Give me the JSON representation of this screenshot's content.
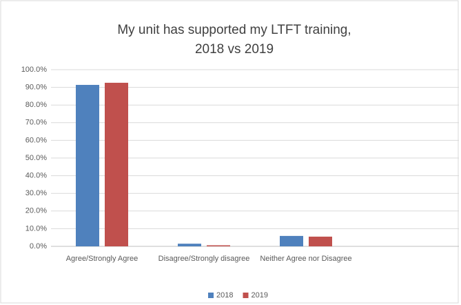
{
  "chart_data": {
    "type": "bar",
    "title": [
      "My unit has supported my LTFT training,",
      "2018 vs 2019"
    ],
    "categories": [
      "Agree/Strongly Agree",
      "Disagree/Strongly disagree",
      "Neither Agree nor Disagree",
      null
    ],
    "series": [
      {
        "name": "2018",
        "color": "#4f81bd",
        "values": [
          91.4,
          1.5,
          5.9,
          null
        ]
      },
      {
        "name": "2019",
        "color": "#c0504d",
        "values": [
          92.6,
          0.6,
          5.5,
          null
        ]
      }
    ],
    "ylim": [
      0,
      100
    ],
    "yticks": [
      {
        "value": 0,
        "label": "0.0%"
      },
      {
        "value": 10,
        "label": "10.0%"
      },
      {
        "value": 20,
        "label": "20.0%"
      },
      {
        "value": 30,
        "label": "30.0%"
      },
      {
        "value": 40,
        "label": "40.0%"
      },
      {
        "value": 50,
        "label": "50.0%"
      },
      {
        "value": 60,
        "label": "60.0%"
      },
      {
        "value": 70,
        "label": "70.0%"
      },
      {
        "value": 80,
        "label": "80.0%"
      },
      {
        "value": 90,
        "label": "90.0%"
      },
      {
        "value": 100,
        "label": "100.0%"
      }
    ],
    "grid": true,
    "legend": "bottom"
  }
}
